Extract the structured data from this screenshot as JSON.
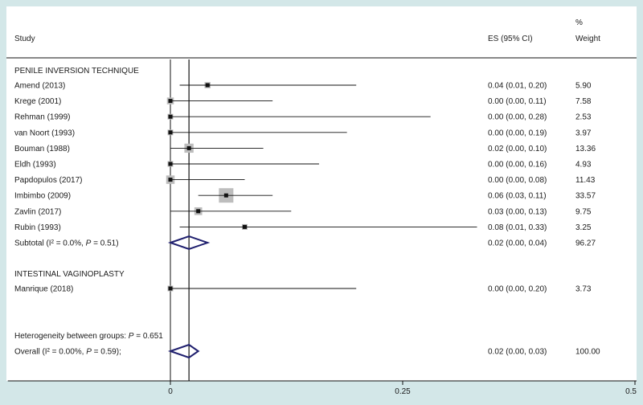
{
  "chart_data": {
    "type": "forest",
    "header": {
      "study": "Study",
      "es": "ES (95% CI)",
      "weight_top": "%",
      "weight": "Weight"
    },
    "groups": [
      {
        "label": "PENILE INVERSION TECHNIQUE",
        "studies": [
          {
            "name": "Amend (2013)",
            "es": 0.04,
            "lo": 0.01,
            "hi": 0.2,
            "es_text": "0.04 (0.01, 0.20)",
            "weight": "5.90"
          },
          {
            "name": "Krege (2001)",
            "es": 0.0,
            "lo": 0.0,
            "hi": 0.11,
            "es_text": "0.00 (0.00, 0.11)",
            "weight": "7.58"
          },
          {
            "name": "Rehman (1999)",
            "es": 0.0,
            "lo": 0.0,
            "hi": 0.28,
            "es_text": "0.00 (0.00, 0.28)",
            "weight": "2.53"
          },
          {
            "name": "van Noort (1993)",
            "es": 0.0,
            "lo": 0.0,
            "hi": 0.19,
            "es_text": "0.00 (0.00, 0.19)",
            "weight": "3.97"
          },
          {
            "name": "Bouman (1988)",
            "es": 0.02,
            "lo": 0.0,
            "hi": 0.1,
            "es_text": "0.02 (0.00, 0.10)",
            "weight": "13.36"
          },
          {
            "name": "Eldh (1993)",
            "es": 0.0,
            "lo": 0.0,
            "hi": 0.16,
            "es_text": "0.00 (0.00, 0.16)",
            "weight": "4.93"
          },
          {
            "name": "Papdopulos (2017)",
            "es": 0.0,
            "lo": 0.0,
            "hi": 0.08,
            "es_text": "0.00 (0.00, 0.08)",
            "weight": "11.43"
          },
          {
            "name": "Imbimbo (2009)",
            "es": 0.06,
            "lo": 0.03,
            "hi": 0.11,
            "es_text": "0.06 (0.03, 0.11)",
            "weight": "33.57"
          },
          {
            "name": "Zavlin (2017)",
            "es": 0.03,
            "lo": 0.0,
            "hi": 0.13,
            "es_text": "0.03 (0.00, 0.13)",
            "weight": "9.75"
          },
          {
            "name": "Rubin (1993)",
            "es": 0.08,
            "lo": 0.01,
            "hi": 0.33,
            "es_text": "0.08 (0.01, 0.33)",
            "weight": "3.25"
          }
        ],
        "subtotal": {
          "label_prefix": "Subtotal  (I² = 0.0%, ",
          "label_p": "P",
          "label_suffix": " = 0.51)",
          "es": 0.02,
          "lo": 0.0,
          "hi": 0.04,
          "es_text": "0.02 (0.00, 0.04)",
          "weight": "96.27"
        }
      },
      {
        "label": "INTESTINAL VAGINOPLASTY",
        "studies": [
          {
            "name": "Manrique (2018)",
            "es": 0.0,
            "lo": 0.0,
            "hi": 0.2,
            "es_text": "0.00 (0.00, 0.20)",
            "weight": "3.73"
          }
        ]
      }
    ],
    "heterogeneity": {
      "prefix": "Heterogeneity between groups: ",
      "p": "P",
      "suffix": " = 0.651"
    },
    "overall": {
      "label_prefix": "Overall  (I² = 0.00%, ",
      "label_p": "P",
      "label_suffix": " = 0.59);",
      "es": 0.02,
      "lo": 0.0,
      "hi": 0.03,
      "es_text": "0.02 (0.00, 0.03)",
      "weight": "100.00"
    },
    "x_axis": {
      "range": [
        -0.175,
        0.5
      ],
      "ticks": [
        0,
        0.25,
        0.5
      ],
      "tick_labels": [
        "0",
        "0.25",
        "0.5"
      ],
      "reference_line": 0
    },
    "colors": {
      "background": "#d3e7e8",
      "panel": "#ffffff",
      "weight_box": "#bdbdbd",
      "point": "#111111",
      "diamond": "#1f1f6e",
      "line": "#111111"
    }
  }
}
